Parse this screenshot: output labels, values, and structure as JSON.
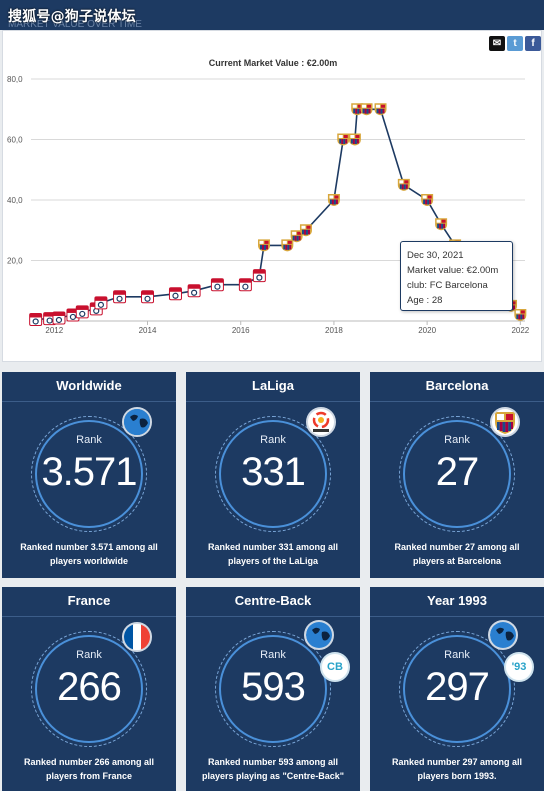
{
  "header": {
    "watermark": "搜狐号@狗子说体坛",
    "faded_text": "MARKET VALUE OVER TIME"
  },
  "share_icons": [
    "mail-icon",
    "twitter-icon",
    "facebook-icon"
  ],
  "chart_title": "Current Market Value : €2.00m",
  "chart_data": {
    "type": "line",
    "title": "Current Market Value : €2.00m",
    "xlabel": "",
    "ylabel": "",
    "x_ticks": [
      "2012",
      "2014",
      "2016",
      "2018",
      "2020",
      "2022"
    ],
    "y_ticks": [
      "20,0",
      "40,0",
      "60,0",
      "80,0"
    ],
    "ylim": [
      0,
      80
    ],
    "xlim": [
      2011.5,
      2022.1
    ],
    "series": [
      {
        "values": [
          {
            "x": 2011.6,
            "y": 0.5,
            "club": "lyon"
          },
          {
            "x": 2011.9,
            "y": 0.8,
            "club": "lyon"
          },
          {
            "x": 2012.1,
            "y": 1.0,
            "club": "lyon"
          },
          {
            "x": 2012.4,
            "y": 2.0,
            "club": "lyon"
          },
          {
            "x": 2012.6,
            "y": 3.0,
            "club": "lyon"
          },
          {
            "x": 2012.9,
            "y": 4.0,
            "club": "lyon"
          },
          {
            "x": 2013.0,
            "y": 6.0,
            "club": "lyon"
          },
          {
            "x": 2013.4,
            "y": 8.0,
            "club": "lyon"
          },
          {
            "x": 2014.0,
            "y": 8.0,
            "club": "lyon"
          },
          {
            "x": 2014.6,
            "y": 9.0,
            "club": "lyon"
          },
          {
            "x": 2015.0,
            "y": 10.0,
            "club": "lyon"
          },
          {
            "x": 2015.5,
            "y": 12.0,
            "club": "lyon"
          },
          {
            "x": 2016.1,
            "y": 12.0,
            "club": "lyon"
          },
          {
            "x": 2016.4,
            "y": 15.0,
            "club": "lyon"
          },
          {
            "x": 2016.5,
            "y": 25.0,
            "club": "barcelona"
          },
          {
            "x": 2017.0,
            "y": 25.0,
            "club": "barcelona"
          },
          {
            "x": 2017.2,
            "y": 28.0,
            "club": "barcelona"
          },
          {
            "x": 2017.4,
            "y": 30.0,
            "club": "barcelona"
          },
          {
            "x": 2018.0,
            "y": 40.0,
            "club": "barcelona"
          },
          {
            "x": 2018.2,
            "y": 60.0,
            "club": "barcelona"
          },
          {
            "x": 2018.45,
            "y": 60.0,
            "club": "barcelona"
          },
          {
            "x": 2018.5,
            "y": 70.0,
            "club": "barcelona"
          },
          {
            "x": 2018.7,
            "y": 70.0,
            "club": "barcelona"
          },
          {
            "x": 2019.0,
            "y": 70.0,
            "club": "barcelona"
          },
          {
            "x": 2019.5,
            "y": 45.0,
            "club": "barcelona"
          },
          {
            "x": 2020.0,
            "y": 40.0,
            "club": "barcelona"
          },
          {
            "x": 2020.3,
            "y": 32.0,
            "club": "barcelona"
          },
          {
            "x": 2020.6,
            "y": 25.0,
            "club": "barcelona"
          },
          {
            "x": 2021.0,
            "y": 12.0,
            "club": "barcelona"
          },
          {
            "x": 2021.4,
            "y": 8.0,
            "club": "barcelona"
          },
          {
            "x": 2021.8,
            "y": 5.0,
            "club": "barcelona"
          },
          {
            "x": 2022.0,
            "y": 2.0,
            "club": "barcelona"
          }
        ]
      }
    ]
  },
  "tooltip": {
    "date": "Dec 30, 2021",
    "market_value": "Market value: €2.00m",
    "club": "club: FC Barcelona",
    "age": "Age : 28"
  },
  "cards": [
    {
      "title": "Worldwide",
      "rank_label": "Rank",
      "value": "3.571",
      "text": "Ranked number 3.571 among all players worldwide",
      "badge": "globe-icon"
    },
    {
      "title": "LaLiga",
      "rank_label": "Rank",
      "value": "331",
      "text": "Ranked number 331 among all players of the LaLiga",
      "badge": "laliga-logo-icon"
    },
    {
      "title": "Barcelona",
      "rank_label": "Rank",
      "value": "27",
      "text": "Ranked number 27 among all players at Barcelona",
      "badge": "barcelona-crest-icon"
    },
    {
      "title": "France",
      "rank_label": "Rank",
      "value": "266",
      "text": "Ranked number 266 among all players from France",
      "badge": "france-flag-icon"
    },
    {
      "title": "Centre-Back",
      "rank_label": "Rank",
      "value": "593",
      "text": "Ranked number 593 among all players playing as \"Centre-Back\"",
      "badge": "globe-icon",
      "badge2": "CB"
    },
    {
      "title": "Year 1993",
      "rank_label": "Rank",
      "value": "297",
      "text": "Ranked number 297 among all players born 1993.",
      "badge": "globe-icon",
      "badge2": "'93"
    }
  ],
  "colors": {
    "navy": "#1d3a62",
    "ring": "#4a90d9",
    "line": "#1d3a62",
    "barca_blue": "#1a4a8a",
    "barca_red": "#a50044",
    "barca_gold": "#d8a73c"
  }
}
